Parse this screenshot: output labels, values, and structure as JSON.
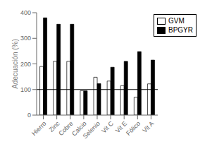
{
  "chart_data": {
    "type": "bar",
    "categories": [
      "Hierro",
      "Zinc",
      "Cobre",
      "Calcio",
      "Selenio",
      "Vit C",
      "Vit E",
      "Fólico",
      "Vit A"
    ],
    "series": [
      {
        "name": "GVM",
        "color": "white",
        "values": [
          190,
          210,
          210,
          95,
          148,
          133,
          115,
          70,
          122
        ]
      },
      {
        "name": "BPGYR",
        "color": "black",
        "values": [
          380,
          355,
          355,
          95,
          123,
          187,
          210,
          248,
          215
        ]
      }
    ],
    "y_label": "Adecuación (%)",
    "ylim": [
      0,
      400
    ],
    "yticks": [
      0,
      100,
      200,
      300,
      400
    ],
    "reference_line": 100,
    "legend": "upper right"
  }
}
